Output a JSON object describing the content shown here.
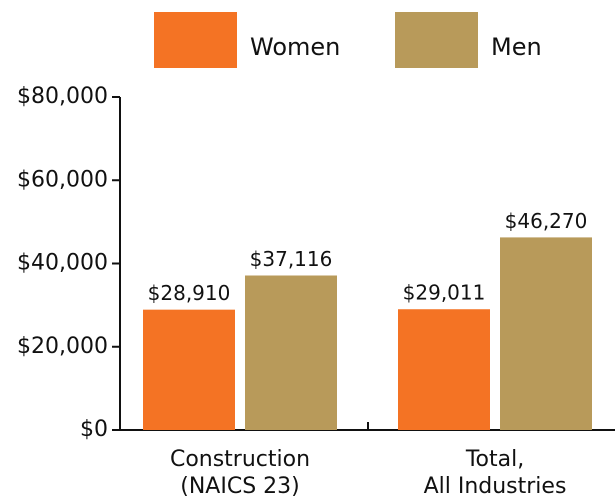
{
  "chart_data": {
    "type": "bar",
    "categories": [
      [
        "Construction",
        "(NAICS 23)"
      ],
      [
        "Total,",
        "All Industries"
      ]
    ],
    "series": [
      {
        "name": "Women",
        "color": "#f47324",
        "values": [
          28910,
          29011
        ],
        "value_labels": [
          "$28,910",
          "$29,011"
        ]
      },
      {
        "name": "Men",
        "color": "#b89a5a",
        "values": [
          37116,
          46270
        ],
        "value_labels": [
          "$37,116",
          "$46,270"
        ]
      }
    ],
    "ylim": [
      0,
      80000
    ],
    "yticks": [
      {
        "value": 0,
        "label": "$0"
      },
      {
        "value": 20000,
        "label": "$20,000"
      },
      {
        "value": 40000,
        "label": "$40,000"
      },
      {
        "value": 60000,
        "label": "$60,000"
      },
      {
        "value": 80000,
        "label": "$80,000"
      }
    ]
  }
}
